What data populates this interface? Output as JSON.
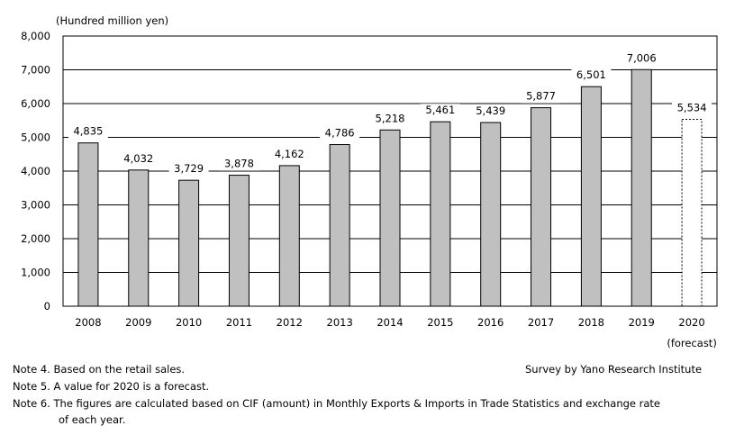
{
  "chart_data": {
    "type": "bar",
    "ylabel": "(Hundred million yen)",
    "categories": [
      "2008",
      "2009",
      "2010",
      "2011",
      "2012",
      "2013",
      "2014",
      "2015",
      "2016",
      "2017",
      "2018",
      "2019",
      "2020"
    ],
    "category_sublabels": {
      "2020": "(forecast)"
    },
    "values": [
      4835,
      4032,
      3729,
      3878,
      4162,
      4786,
      5218,
      5461,
      5439,
      5877,
      6501,
      7006,
      5534
    ],
    "data_labels": [
      "4,835",
      "4,032",
      "3,729",
      "3,878",
      "4,162",
      "4,786",
      "5,218",
      "5,461",
      "5,439",
      "5,877",
      "6,501",
      "7,006",
      "5,534"
    ],
    "forecast": [
      false,
      false,
      false,
      false,
      false,
      false,
      false,
      false,
      false,
      false,
      false,
      false,
      true
    ],
    "ylim": [
      0,
      8000
    ],
    "yticks": [
      0,
      1000,
      2000,
      3000,
      4000,
      5000,
      6000,
      7000,
      8000
    ],
    "ytick_labels": [
      "0",
      "1,000",
      "2,000",
      "3,000",
      "4,000",
      "5,000",
      "6,000",
      "7,000",
      "8,000"
    ],
    "grid": true,
    "bar_color": "#c0c0c0",
    "forecast_bar_color": "#ffffff"
  },
  "notes": [
    "Note 4.  Based on the retail sales.",
    "Note 5.  A value for 2020 is a forecast.",
    "Note 6. The figures are calculated based on CIF (amount) in Monthly Exports & Imports in Trade Statistics and exchange rate",
    "of each year."
  ],
  "source": "Survey by Yano Research Institute"
}
